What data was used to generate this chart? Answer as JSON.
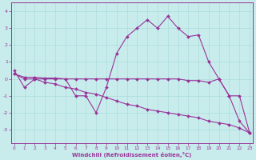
{
  "xlabel": "Windchill (Refroidissement éolien,°C)",
  "x_ticks": [
    0,
    1,
    2,
    3,
    4,
    5,
    6,
    7,
    8,
    9,
    10,
    11,
    12,
    13,
    14,
    15,
    16,
    17,
    18,
    19,
    20,
    21,
    22,
    23
  ],
  "ylim": [
    -3.8,
    4.5
  ],
  "xlim": [
    -0.3,
    23.3
  ],
  "yticks": [
    -3,
    -2,
    -1,
    0,
    1,
    2,
    3,
    4
  ],
  "bg_color": "#c8ecec",
  "line_color": "#993399",
  "grid_color": "#aadddd",
  "series1_x": [
    0,
    1,
    2,
    3,
    4,
    5,
    6,
    7,
    8,
    9,
    10,
    11,
    12,
    13,
    14,
    15,
    16,
    17,
    18,
    19,
    20,
    21,
    22,
    23
  ],
  "series1_y": [
    0.5,
    -0.5,
    0.0,
    0.0,
    0.0,
    0.0,
    -1.0,
    -1.0,
    -2.0,
    -0.5,
    1.5,
    2.5,
    3.0,
    3.5,
    3.0,
    3.7,
    3.0,
    2.5,
    2.6,
    1.0,
    0.0,
    -1.0,
    -2.5,
    -3.2
  ],
  "series2_x": [
    0,
    1,
    2,
    3,
    4,
    5,
    6,
    7,
    8,
    9,
    10,
    11,
    12,
    13,
    14,
    15,
    16,
    17,
    18,
    19,
    20,
    21,
    22,
    23
  ],
  "series2_y": [
    0.3,
    0.1,
    0.1,
    0.05,
    0.05,
    0.0,
    0.0,
    0.0,
    0.0,
    0.0,
    0.0,
    0.0,
    0.0,
    0.0,
    0.0,
    0.0,
    0.0,
    -0.1,
    -0.1,
    -0.2,
    0.0,
    -1.0,
    -1.0,
    -3.2
  ],
  "series3_x": [
    0,
    1,
    2,
    3,
    4,
    5,
    6,
    7,
    8,
    9,
    10,
    11,
    12,
    13,
    14,
    15,
    16,
    17,
    18,
    19,
    20,
    21,
    22,
    23
  ],
  "series3_y": [
    0.3,
    0.0,
    0.0,
    -0.2,
    -0.3,
    -0.5,
    -0.6,
    -0.8,
    -0.9,
    -1.1,
    -1.3,
    -1.5,
    -1.6,
    -1.8,
    -1.9,
    -2.0,
    -2.1,
    -2.2,
    -2.3,
    -2.5,
    -2.6,
    -2.7,
    -2.9,
    -3.2
  ]
}
